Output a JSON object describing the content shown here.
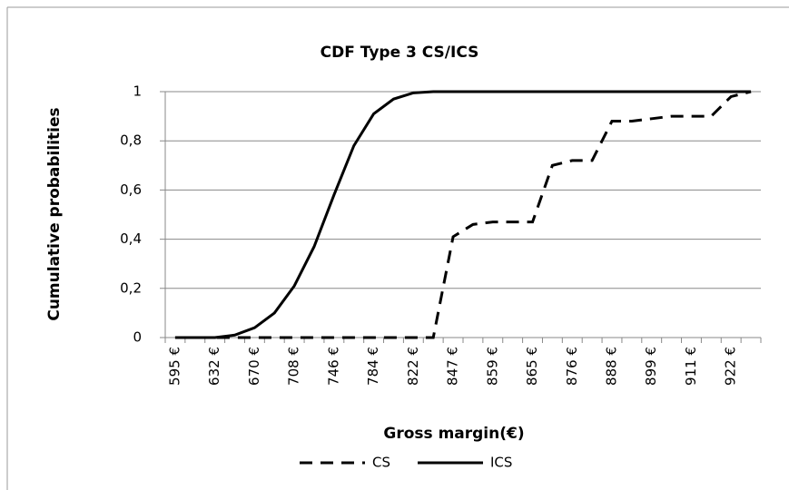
{
  "chart_data": {
    "type": "line",
    "title": "CDF Type 3 CS/ICS",
    "x_label": "Gross margin(€)",
    "y_label": "Cumulative probabilities",
    "categories": [
      "595 €",
      null,
      "632 €",
      null,
      "670 €",
      null,
      "708 €",
      null,
      "746 €",
      null,
      "784 €",
      null,
      "822 €",
      null,
      "847 €",
      null,
      "859 €",
      null,
      "865 €",
      null,
      "876 €",
      null,
      "888 €",
      null,
      "899 €",
      null,
      "911 €",
      null,
      "922 €",
      null
    ],
    "series": [
      {
        "name": "CS",
        "color": "#000000",
        "line_style": "dashed",
        "values": [
          0,
          0,
          0,
          0,
          0,
          0,
          0,
          0,
          0,
          0,
          0,
          0,
          0,
          0,
          0.41,
          0.46,
          0.47,
          0.47,
          0.47,
          0.7,
          0.72,
          0.72,
          0.88,
          0.88,
          0.89,
          0.9,
          0.9,
          0.9,
          0.98,
          1
        ]
      },
      {
        "name": "ICS",
        "color": "#000000",
        "line_style": "solid",
        "values": [
          0,
          0,
          0,
          0.01,
          0.04,
          0.1,
          0.21,
          0.37,
          0.58,
          0.78,
          0.91,
          0.97,
          0.995,
          1,
          1,
          1,
          1,
          1,
          1,
          1,
          1,
          1,
          1,
          1,
          1,
          1,
          1,
          1,
          1,
          1
        ]
      }
    ],
    "ylim": [
      0,
      1
    ],
    "yticks": [
      0,
      {
        "value": 0.2,
        "label": "0,2"
      },
      {
        "value": 0.4,
        "label": "0,4"
      },
      {
        "value": 0.6,
        "label": "0,6"
      },
      {
        "value": 0.8,
        "label": "0,8"
      },
      1
    ],
    "grid": true,
    "legend": "bottom"
  }
}
